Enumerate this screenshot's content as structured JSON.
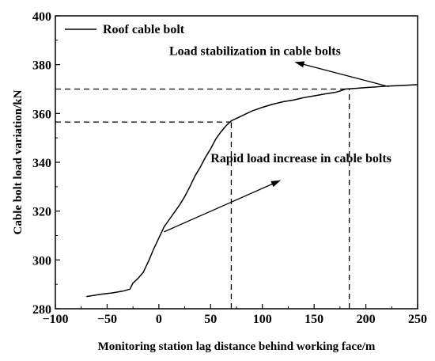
{
  "chart_data": {
    "type": "line",
    "xlabel": "Monitoring station lag distance behind working face/m",
    "ylabel": "Cable bolt load variation/kN",
    "xlim": [
      -100,
      250
    ],
    "ylim": [
      280,
      400
    ],
    "xticks": [
      -100,
      -50,
      0,
      50,
      100,
      150,
      200,
      250
    ],
    "yticks": [
      280,
      300,
      320,
      340,
      360,
      380,
      400
    ],
    "grid": false,
    "legend_position": "top-left",
    "series": [
      {
        "name": "Roof cable bolt",
        "color": "#000000",
        "x": [
          -70,
          -55,
          -45,
          -35,
          -28,
          -25,
          -20,
          -15,
          -10,
          -5,
          0,
          5,
          10,
          15,
          20,
          25,
          30,
          35,
          40,
          45,
          50,
          55,
          60,
          65,
          70,
          80,
          90,
          100,
          110,
          120,
          130,
          140,
          150,
          160,
          170,
          175,
          180,
          190,
          200,
          210,
          220,
          230,
          240,
          250
        ],
        "y": [
          285,
          286,
          286.5,
          287.2,
          288,
          290.5,
          292.5,
          295,
          299.5,
          304.5,
          309,
          313.5,
          316.5,
          319.5,
          322.5,
          326,
          330,
          334.5,
          338,
          342,
          345.5,
          349.5,
          352.5,
          355,
          357,
          359,
          361,
          362.5,
          363.8,
          364.8,
          365.5,
          366.5,
          367.2,
          368,
          368.6,
          369.2,
          370,
          370.3,
          370.6,
          370.9,
          371.2,
          371.4,
          371.6,
          371.8
        ]
      }
    ],
    "reference_lines": [
      {
        "y": 370,
        "x_end": 184
      },
      {
        "y": 356.5,
        "x_end": 70
      },
      {
        "x": 70,
        "y_end": 356.5
      },
      {
        "x": 184,
        "y_end": 370
      }
    ],
    "annotations": [
      {
        "text": "Load stabilization in cable bolts",
        "arrow_from": [
          222,
          371
        ],
        "arrow_to": [
          132,
          381
        ],
        "label_at": [
          10,
          384
        ]
      },
      {
        "text": "Rapid load increase in cable bolts",
        "arrow_from": [
          5,
          311.5
        ],
        "arrow_to": [
          117,
          332.5
        ],
        "label_at": [
          50,
          340
        ]
      }
    ]
  }
}
